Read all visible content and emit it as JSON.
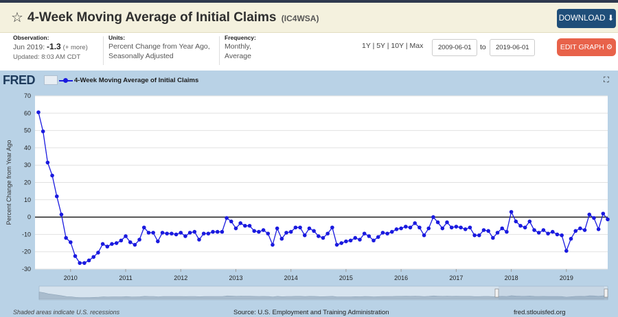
{
  "header": {
    "title": "4-Week Moving Average of Initial Claims",
    "series_code": "(IC4WSA)",
    "download_label": "DOWNLOAD"
  },
  "meta": {
    "observation_label": "Observation:",
    "observation_date": "Jun 2019:",
    "observation_value": "-1.3",
    "observation_more": "(+ more)",
    "updated": "Updated: 8:03 AM CDT",
    "units_label": "Units:",
    "units_line1": "Percent Change from Year Ago,",
    "units_line2": "Seasonally Adjusted",
    "frequency_label": "Frequency:",
    "frequency_line1": "Monthly,",
    "frequency_line2": "Average"
  },
  "range": {
    "options": "1Y | 5Y | 10Y | Max",
    "start_date": "2009-06-01",
    "to_label": "to",
    "end_date": "2019-06-01",
    "edit_label": "EDIT GRAPH"
  },
  "legend": {
    "logo": "FRED",
    "series_name": "4-Week Moving Average of Initial Claims"
  },
  "footer": {
    "recessions": "Shaded areas indicate U.S. recessions",
    "source": "Source: U.S. Employment and Training Administration",
    "site": "fred.stlouisfed.org"
  },
  "colors": {
    "series": "#1a1adf",
    "background": "#b9d2e6",
    "download": "#1f4e79",
    "edit": "#e8624a"
  },
  "chart_data": {
    "type": "line",
    "title": "4-Week Moving Average of Initial Claims",
    "xlabel": "",
    "ylabel": "Percent Change from Year Ago",
    "ylim": [
      -30,
      70
    ],
    "yticks": [
      -30,
      -20,
      -10,
      0,
      10,
      20,
      30,
      40,
      50,
      60,
      70
    ],
    "x_start": "2009-06",
    "x_end": "2019-06",
    "xticks": [
      "2010",
      "2011",
      "2012",
      "2013",
      "2014",
      "2015",
      "2016",
      "2017",
      "2018",
      "2019"
    ],
    "grid": true,
    "series": [
      {
        "name": "4-Week Moving Average of Initial Claims",
        "values": [
          60.5,
          49.5,
          31.5,
          24,
          12,
          1.5,
          -12,
          -14.5,
          -22.5,
          -26.5,
          -26.5,
          -25,
          -23,
          -20.5,
          -15.5,
          -17,
          -15.5,
          -15,
          -13.5,
          -11,
          -14.5,
          -16,
          -13,
          -6,
          -9,
          -9,
          -14,
          -9,
          -9.5,
          -9.5,
          -10,
          -9,
          -11,
          -9,
          -8.5,
          -13,
          -9.5,
          -9.5,
          -8.5,
          -8.5,
          -8.5,
          -0.5,
          -2.5,
          -6.5,
          -3.5,
          -5,
          -5,
          -8,
          -8.5,
          -7.5,
          -9.5,
          -16,
          -6.5,
          -12.5,
          -9,
          -8.5,
          -6,
          -6,
          -10.5,
          -6.5,
          -8,
          -11,
          -12,
          -9.5,
          -6,
          -16,
          -15,
          -14,
          -13.5,
          -12,
          -13,
          -9.5,
          -11,
          -13.5,
          -11.5,
          -9,
          -9.5,
          -8.5,
          -7,
          -6.5,
          -5.5,
          -6,
          -3.5,
          -6,
          -10.5,
          -6.5,
          0,
          -3,
          -6.5,
          -3,
          -6,
          -5.5,
          -6,
          -7,
          -6,
          -10.5,
          -10.5,
          -7.5,
          -8,
          -12,
          -9,
          -6.5,
          -8.5,
          3,
          -2.5,
          -5,
          -6,
          -2.5,
          -7.5,
          -9,
          -7.5,
          -9.5,
          -8.5,
          -10,
          -10.5,
          -19.5,
          -12.5,
          -8,
          -6.5,
          -7.5,
          1.5,
          -0.5,
          -7,
          2,
          -1.3
        ]
      }
    ]
  }
}
